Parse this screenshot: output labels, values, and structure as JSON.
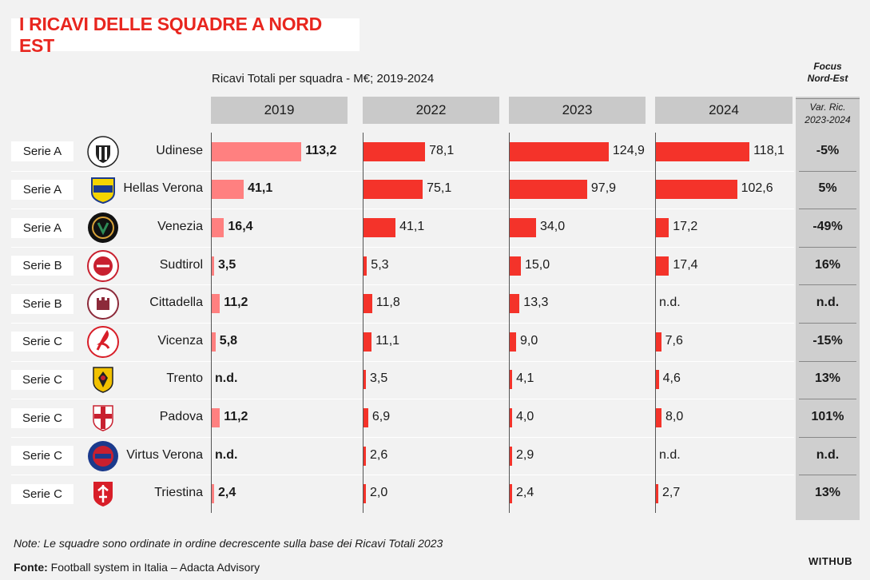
{
  "title": "I RICAVI DELLE SQUADRE A NORD EST",
  "subtitle": "Ricavi Totali per squadra - M€; 2019-2024",
  "focus": {
    "title_line1": "Focus",
    "title_line2": "Nord-Est",
    "sub_line1": "Var. Ric.",
    "sub_line2": "2023-2024"
  },
  "note": "Note: Le squadre sono ordinate in ordine decrescente sulla base dei Ricavi Totali 2023",
  "source": {
    "label": "Fonte:",
    "text": " Football system in Italia – Adacta Advisory"
  },
  "brand": "WITHUB",
  "colors": {
    "bar_2019": "#ff8080",
    "bar_other": "#f4332a",
    "title": "#e8261f"
  },
  "chart_data": {
    "type": "bar",
    "title": "I RICAVI DELLE SQUADRE A NORD EST",
    "subtitle": "Ricavi Totali per squadra - M€; 2019-2024",
    "years": [
      "2019",
      "2022",
      "2023",
      "2024"
    ],
    "rows": [
      {
        "league": "Serie A",
        "team": "Udinese",
        "crest": "udinese-crest-icon",
        "values": [
          113.2,
          78.1,
          124.9,
          118.1
        ],
        "labels": [
          "113,2",
          "78,1",
          "124,9",
          "118,1"
        ],
        "var": "-5%"
      },
      {
        "league": "Serie A",
        "team": "Hellas Verona",
        "crest": "hellas-verona-crest-icon",
        "values": [
          41.1,
          75.1,
          97.9,
          102.6
        ],
        "labels": [
          "41,1",
          "75,1",
          "97,9",
          "102,6"
        ],
        "var": "5%"
      },
      {
        "league": "Serie A",
        "team": "Venezia",
        "crest": "venezia-crest-icon",
        "values": [
          16.4,
          41.1,
          34.0,
          17.2
        ],
        "labels": [
          "16,4",
          "41,1",
          "34,0",
          "17,2"
        ],
        "var": "-49%"
      },
      {
        "league": "Serie B",
        "team": "Sudtirol",
        "crest": "sudtirol-crest-icon",
        "values": [
          3.5,
          5.3,
          15.0,
          17.4
        ],
        "labels": [
          "3,5",
          "5,3",
          "15,0",
          "17,4"
        ],
        "var": "16%"
      },
      {
        "league": "Serie B",
        "team": "Cittadella",
        "crest": "cittadella-crest-icon",
        "values": [
          11.2,
          11.8,
          13.3,
          null
        ],
        "labels": [
          "11,2",
          "11,8",
          "13,3",
          "n.d."
        ],
        "var": "n.d."
      },
      {
        "league": "Serie C",
        "team": "Vicenza",
        "crest": "vicenza-crest-icon",
        "values": [
          5.8,
          11.1,
          9.0,
          7.6
        ],
        "labels": [
          "5,8",
          "11,1",
          "9,0",
          "7,6"
        ],
        "var": "-15%"
      },
      {
        "league": "Serie C",
        "team": "Trento",
        "crest": "trento-crest-icon",
        "values": [
          null,
          3.5,
          4.1,
          4.6
        ],
        "labels": [
          "n.d.",
          "3,5",
          "4,1",
          "4,6"
        ],
        "var": "13%"
      },
      {
        "league": "Serie C",
        "team": "Padova",
        "crest": "padova-crest-icon",
        "values": [
          11.2,
          6.9,
          4.0,
          8.0
        ],
        "labels": [
          "11,2",
          "6,9",
          "4,0",
          "8,0"
        ],
        "var": "101%"
      },
      {
        "league": "Serie C",
        "team": "Virtus Verona",
        "crest": "virtus-verona-crest-icon",
        "values": [
          null,
          2.6,
          2.9,
          null
        ],
        "labels": [
          "n.d.",
          "2,6",
          "2,9",
          "n.d."
        ],
        "var": "n.d."
      },
      {
        "league": "Serie C",
        "team": "Triestina",
        "crest": "triestina-crest-icon",
        "values": [
          2.4,
          2.0,
          2.4,
          2.7
        ],
        "labels": [
          "2,4",
          "2,0",
          "2,4",
          "2,7"
        ],
        "var": "13%"
      }
    ],
    "xlim": [
      0,
      125
    ],
    "grid": false
  }
}
